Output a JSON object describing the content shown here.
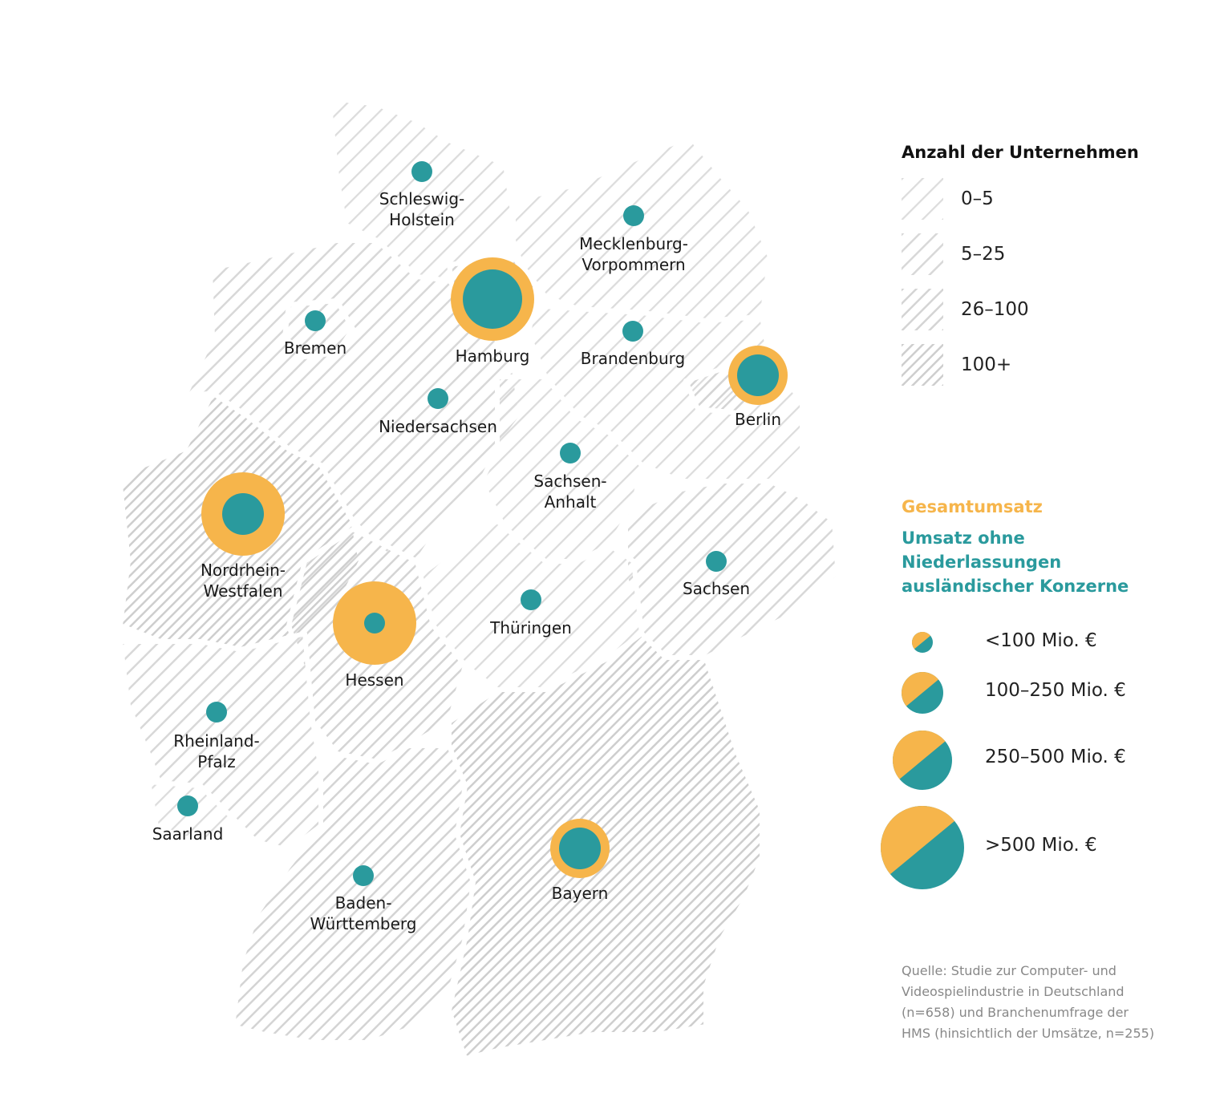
{
  "colors": {
    "total_revenue": "#f6b54b",
    "revenue_excl_foreign": "#2a9a9d",
    "hatch_light": "#d9d9d9",
    "hatch_dark": "#cfcfcf",
    "border": "#ffffff"
  },
  "legend": {
    "companies_title": "Anzahl der Unternehmen",
    "company_classes": [
      "0–5",
      "5–25",
      "26–100",
      "100+"
    ],
    "revenue_title": "Gesamtumsatz",
    "revenue_subtitle_lines": [
      "Umsatz ohne",
      "Niederlassungen",
      "ausländischer Konzerne"
    ],
    "size_classes": [
      "<100 Mio. €",
      "100–250 Mio. €",
      "250–500 Mio. €",
      ">500 Mio. €"
    ]
  },
  "source_lines": [
    "Quelle: Studie zur Computer- und",
    "Videospielindustrie in Deutschland",
    "(n=658) und Branchenumfrage der",
    "HMS (hinsichtlich der Umsätze, n=255)"
  ],
  "regions": [
    {
      "key": "sh",
      "lines": [
        "Schleswig-",
        "Holstein"
      ],
      "company_class": "0–5",
      "total_class": null,
      "net_class": "<100 Mio. €"
    },
    {
      "key": "mv",
      "lines": [
        "Mecklenburg-",
        "Vorpommern"
      ],
      "company_class": "0–5",
      "total_class": null,
      "net_class": "<100 Mio. €"
    },
    {
      "key": "hb",
      "lines": [
        "Bremen"
      ],
      "company_class": "5–25",
      "total_class": null,
      "net_class": "<100 Mio. €"
    },
    {
      "key": "hh",
      "lines": [
        "Hamburg"
      ],
      "company_class": "26–100",
      "total_class": ">500 Mio. €",
      "net_class": "250–500 Mio. €"
    },
    {
      "key": "bb",
      "lines": [
        "Brandenburg"
      ],
      "company_class": "0–5",
      "total_class": null,
      "net_class": "<100 Mio. €"
    },
    {
      "key": "be",
      "lines": [
        "Berlin"
      ],
      "company_class": "26–100",
      "total_class": "250–500 Mio. €",
      "net_class": "100–250 Mio. €"
    },
    {
      "key": "ni",
      "lines": [
        "Niedersachsen"
      ],
      "company_class": "5–25",
      "total_class": null,
      "net_class": "<100 Mio. €"
    },
    {
      "key": "st",
      "lines": [
        "Sachsen-",
        "Anhalt"
      ],
      "company_class": "0–5",
      "total_class": null,
      "net_class": "<100 Mio. €"
    },
    {
      "key": "nw",
      "lines": [
        "Nordrhein-",
        "Westfalen"
      ],
      "company_class": "100+",
      "total_class": ">500 Mio. €",
      "net_class": "100–250 Mio. €"
    },
    {
      "key": "sn",
      "lines": [
        "Sachsen"
      ],
      "company_class": "5–25",
      "total_class": null,
      "net_class": "<100 Mio. €"
    },
    {
      "key": "he",
      "lines": [
        "Hessen"
      ],
      "company_class": "26–100",
      "total_class": ">500 Mio. €",
      "net_class": "<100 Mio. €"
    },
    {
      "key": "th",
      "lines": [
        "Thüringen"
      ],
      "company_class": "0–5",
      "total_class": null,
      "net_class": "<100 Mio. €"
    },
    {
      "key": "rp",
      "lines": [
        "Rheinland-",
        "Pfalz"
      ],
      "company_class": "5–25",
      "total_class": null,
      "net_class": "<100 Mio. €"
    },
    {
      "key": "sl",
      "lines": [
        "Saarland"
      ],
      "company_class": "0–5",
      "total_class": null,
      "net_class": "<100 Mio. €"
    },
    {
      "key": "bw",
      "lines": [
        "Baden-",
        "Württemberg"
      ],
      "company_class": "26–100",
      "total_class": null,
      "net_class": "<100 Mio. €"
    },
    {
      "key": "by",
      "lines": [
        "Bayern"
      ],
      "company_class": "100+",
      "total_class": "250–500 Mio. €",
      "net_class": "100–250 Mio. €"
    }
  ]
}
